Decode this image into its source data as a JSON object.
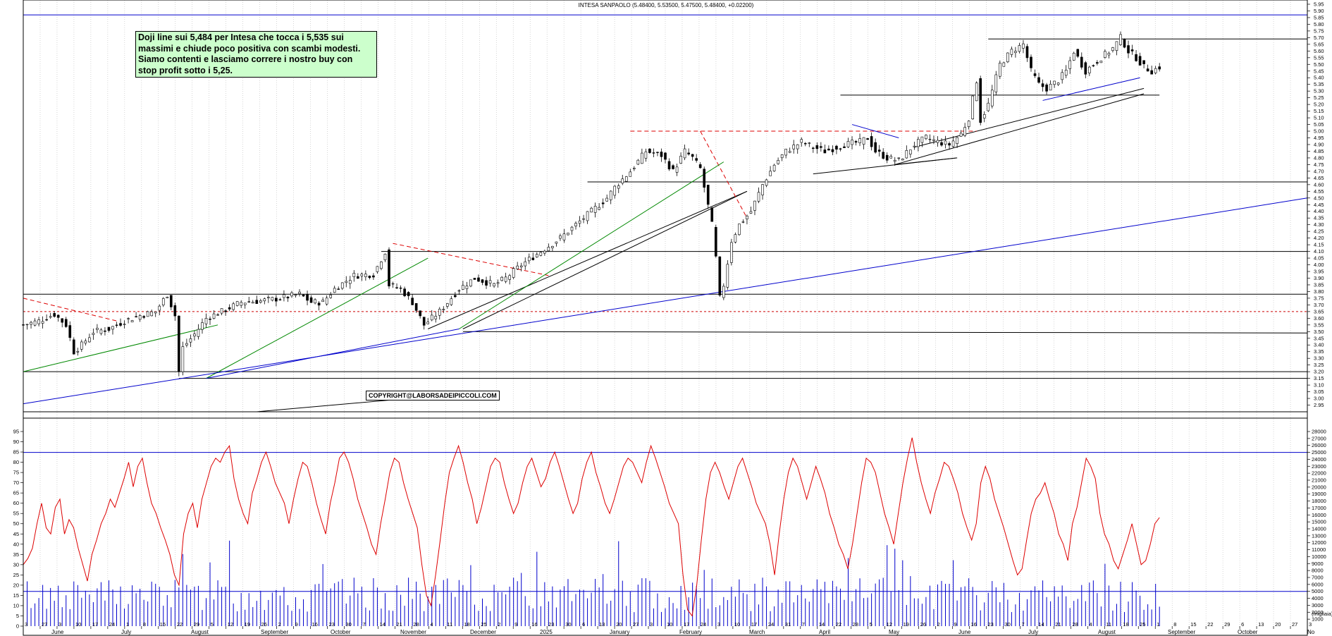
{
  "chart_data": [
    {
      "type": "candlestick",
      "title": "INTESA SANPAOLO (5.48400, 5.53500, 5.47500, 5.48400, +0.02200)",
      "ylim": [
        2.9,
        5.95
      ],
      "y_ticks": [
        "5.95",
        "5.90",
        "5.85",
        "5.80",
        "5.75",
        "5.70",
        "5.65",
        "5.60",
        "5.55",
        "5.50",
        "5.45",
        "5.40",
        "5.35",
        "5.30",
        "5.25",
        "5.20",
        "5.15",
        "5.10",
        "5.05",
        "5.00",
        "4.95",
        "4.90",
        "4.85",
        "4.80",
        "4.75",
        "4.70",
        "4.65",
        "4.60",
        "4.55",
        "4.50",
        "4.45",
        "4.40",
        "4.35",
        "4.30",
        "4.25",
        "4.20",
        "4.15",
        "4.10",
        "4.05",
        "4.00",
        "3.95",
        "3.90",
        "3.85",
        "3.80",
        "3.75",
        "3.70",
        "3.65",
        "3.60",
        "3.55",
        "3.50",
        "3.45",
        "3.40",
        "3.35",
        "3.30",
        "3.25",
        "3.20",
        "3.15",
        "3.10",
        "3.05",
        "3.00",
        "2.95"
      ],
      "close_path": [
        [
          0,
          3.55
        ],
        [
          4,
          3.58
        ],
        [
          8,
          3.63
        ],
        [
          11,
          3.55
        ],
        [
          13,
          3.35
        ],
        [
          15,
          3.4
        ],
        [
          18,
          3.5
        ],
        [
          22,
          3.52
        ],
        [
          26,
          3.58
        ],
        [
          30,
          3.62
        ],
        [
          34,
          3.65
        ],
        [
          37,
          3.78
        ],
        [
          39,
          3.62
        ],
        [
          40,
          3.2
        ],
        [
          41,
          3.38
        ],
        [
          44,
          3.48
        ],
        [
          47,
          3.6
        ],
        [
          51,
          3.65
        ],
        [
          56,
          3.72
        ],
        [
          61,
          3.73
        ],
        [
          66,
          3.75
        ],
        [
          71,
          3.78
        ],
        [
          74,
          3.72
        ],
        [
          77,
          3.72
        ],
        [
          80,
          3.82
        ],
        [
          85,
          3.92
        ],
        [
          90,
          3.93
        ],
        [
          93,
          4.1
        ],
        [
          94,
          3.85
        ],
        [
          97,
          3.82
        ],
        [
          100,
          3.72
        ],
        [
          103,
          3.55
        ],
        [
          107,
          3.65
        ],
        [
          112,
          3.82
        ],
        [
          116,
          3.9
        ],
        [
          121,
          3.85
        ],
        [
          124,
          3.9
        ],
        [
          128,
          4.0
        ],
        [
          133,
          4.1
        ],
        [
          138,
          4.2
        ],
        [
          142,
          4.3
        ],
        [
          146,
          4.4
        ],
        [
          150,
          4.5
        ],
        [
          152,
          4.58
        ],
        [
          156,
          4.7
        ],
        [
          160,
          4.85
        ],
        [
          164,
          4.82
        ],
        [
          167,
          4.7
        ],
        [
          170,
          4.85
        ],
        [
          172,
          4.8
        ],
        [
          174,
          4.72
        ],
        [
          177,
          4.3
        ],
        [
          178,
          4.05
        ],
        [
          179,
          3.75
        ],
        [
          180,
          3.85
        ],
        [
          182,
          4.18
        ],
        [
          184,
          4.3
        ],
        [
          187,
          4.4
        ],
        [
          190,
          4.6
        ],
        [
          193,
          4.75
        ],
        [
          196,
          4.85
        ],
        [
          200,
          4.92
        ],
        [
          203,
          4.88
        ],
        [
          206,
          4.85
        ],
        [
          211,
          4.9
        ],
        [
          215,
          4.92
        ],
        [
          217,
          4.95
        ],
        [
          219,
          4.85
        ],
        [
          222,
          4.8
        ],
        [
          225,
          4.78
        ],
        [
          229,
          4.9
        ],
        [
          232,
          4.95
        ],
        [
          235,
          4.92
        ],
        [
          238,
          4.9
        ],
        [
          241,
          4.98
        ],
        [
          243,
          5.1
        ],
        [
          245,
          5.38
        ],
        [
          246,
          5.08
        ],
        [
          248,
          5.2
        ],
        [
          251,
          5.5
        ],
        [
          254,
          5.6
        ],
        [
          257,
          5.65
        ],
        [
          259,
          5.45
        ],
        [
          261,
          5.35
        ],
        [
          263,
          5.32
        ],
        [
          266,
          5.38
        ],
        [
          268,
          5.45
        ],
        [
          270,
          5.6
        ],
        [
          273,
          5.45
        ],
        [
          277,
          5.55
        ],
        [
          280,
          5.62
        ],
        [
          282,
          5.7
        ],
        [
          284,
          5.6
        ],
        [
          286,
          5.55
        ],
        [
          288,
          5.48
        ],
        [
          290,
          5.45
        ],
        [
          292,
          5.48
        ]
      ],
      "levels": [
        {
          "y": 5.87,
          "color": "#0000cc"
        },
        {
          "y": 3.65,
          "color": "#cc0000",
          "style": "dashed"
        }
      ],
      "segments_black": [
        [
          [
            145,
            4.62
          ],
          [
            330,
            4.62
          ]
        ],
        [
          [
            203,
            4.68
          ],
          [
            240,
            4.8
          ]
        ],
        [
          [
            113,
            3.5
          ],
          [
            330,
            3.49
          ]
        ],
        [
          [
            0,
            3.2
          ],
          [
            330,
            3.2
          ]
        ],
        [
          [
            0,
            3.78
          ],
          [
            330,
            3.78
          ]
        ],
        [
          [
            92,
            4.1
          ],
          [
            330,
            4.1
          ]
        ],
        [
          [
            210,
            5.27
          ],
          [
            292,
            5.27
          ]
        ],
        [
          [
            248,
            5.69
          ],
          [
            330,
            5.69
          ]
        ],
        [
          [
            224,
            4.75
          ],
          [
            240,
            4.8
          ]
        ],
        [
          [
            40,
            3.15
          ],
          [
            330,
            3.15
          ]
        ],
        [
          [
            0,
            2.9
          ],
          [
            330,
            2.9
          ]
        ],
        [
          [
            104,
            3.52
          ],
          [
            186,
            4.55
          ]
        ],
        [
          [
            229,
            4.88
          ],
          [
            288,
            5.32
          ]
        ],
        [
          [
            113,
            3.52
          ],
          [
            186,
            4.55
          ]
        ],
        [
          [
            224,
            4.75
          ],
          [
            288,
            5.28
          ]
        ],
        [
          [
            60,
            2.9
          ],
          [
            95,
            2.99
          ]
        ]
      ],
      "segments_red": [
        [
          [
            156,
            5.0
          ],
          [
            245,
            5.0
          ]
        ],
        [
          [
            0,
            3.75
          ],
          [
            24,
            3.58
          ]
        ],
        [
          [
            95,
            4.16
          ],
          [
            135,
            3.92
          ]
        ],
        [
          [
            174,
            5.0
          ],
          [
            186,
            4.35
          ]
        ]
      ],
      "segments_green": [
        [
          [
            0,
            3.2
          ],
          [
            50,
            3.55
          ]
        ],
        [
          [
            47,
            3.15
          ],
          [
            104,
            4.05
          ]
        ],
        [
          [
            112,
            3.52
          ],
          [
            180,
            4.77
          ]
        ]
      ],
      "segments_blue": [
        [
          [
            0,
            2.96
          ],
          [
            330,
            4.5
          ]
        ],
        [
          [
            47,
            3.15
          ],
          [
            112,
            3.52
          ]
        ],
        [
          [
            262,
            5.23
          ],
          [
            287,
            5.4
          ]
        ],
        [
          [
            213,
            5.05
          ],
          [
            225,
            4.95
          ]
        ]
      ],
      "x_ticks": [
        "3",
        "27",
        "3",
        "10",
        "17",
        "24",
        "1",
        "8",
        "15",
        "22",
        "29",
        "5",
        "12",
        "19",
        "26",
        "2",
        "9",
        "16",
        "23",
        "30",
        "7",
        "14",
        "21",
        "28",
        "4",
        "11",
        "18",
        "25",
        "2",
        "9",
        "16",
        "23",
        "30",
        "6",
        "13",
        "20",
        "27",
        "3",
        "10",
        "17",
        "24",
        "3",
        "10",
        "17",
        "24",
        "31",
        "7",
        "14",
        "22",
        "28",
        "5",
        "12",
        "19",
        "26",
        "2",
        "9",
        "16",
        "23",
        "30",
        "7",
        "14",
        "21",
        "28",
        "4",
        "11",
        "18",
        "25",
        "1",
        "8",
        "15",
        "22",
        "29",
        "6",
        "13",
        "20",
        "27",
        "3"
      ],
      "x_months": [
        "June",
        "July",
        "August",
        "September",
        "October",
        "November",
        "December",
        "2025",
        "January",
        "February",
        "March",
        "April",
        "May",
        "June",
        "July",
        "August",
        "September",
        "October",
        "No"
      ]
    },
    {
      "type": "line",
      "name": "oscillator",
      "ylim": [
        0,
        95
      ],
      "y_ticks": [
        "95",
        "90",
        "85",
        "80",
        "75",
        "70",
        "65",
        "60",
        "55",
        "50",
        "45",
        "40",
        "35",
        "30",
        "25",
        "20",
        "15",
        "10",
        "5",
        "0"
      ],
      "levels": [
        90,
        15
      ],
      "values": [
        30,
        33,
        38,
        50,
        60,
        48,
        45,
        58,
        62,
        45,
        52,
        48,
        38,
        30,
        22,
        35,
        42,
        50,
        55,
        62,
        58,
        65,
        72,
        80,
        68,
        78,
        82,
        70,
        60,
        55,
        48,
        42,
        35,
        25,
        20,
        45,
        55,
        60,
        48,
        62,
        70,
        78,
        82,
        80,
        85,
        88,
        72,
        62,
        55,
        50,
        65,
        72,
        80,
        85,
        78,
        70,
        65,
        60,
        50,
        62,
        72,
        80,
        78,
        70,
        60,
        52,
        45,
        60,
        70,
        82,
        85,
        80,
        72,
        62,
        55,
        48,
        40,
        35,
        50,
        62,
        75,
        82,
        80,
        70,
        62,
        55,
        48,
        30,
        15,
        10,
        25,
        42,
        60,
        75,
        82,
        88,
        80,
        70,
        62,
        50,
        58,
        68,
        78,
        82,
        80,
        70,
        62,
        55,
        60,
        70,
        78,
        82,
        75,
        68,
        72,
        80,
        85,
        78,
        70,
        62,
        55,
        60,
        72,
        80,
        85,
        75,
        68,
        60,
        55,
        62,
        70,
        78,
        82,
        80,
        75,
        70,
        80,
        88,
        82,
        75,
        68,
        60,
        55,
        50,
        25,
        8,
        5,
        20,
        42,
        62,
        75,
        80,
        75,
        68,
        62,
        70,
        78,
        82,
        75,
        68,
        60,
        55,
        50,
        40,
        25,
        45,
        62,
        75,
        82,
        78,
        70,
        62,
        70,
        78,
        72,
        65,
        55,
        48,
        40,
        35,
        28,
        40,
        55,
        70,
        82,
        80,
        75,
        65,
        55,
        48,
        40,
        55,
        70,
        82,
        92,
        80,
        70,
        62,
        55,
        65,
        72,
        80,
        78,
        72,
        65,
        55,
        48,
        42,
        50,
        70,
        78,
        72,
        62,
        55,
        48,
        40,
        32,
        25,
        28,
        42,
        55,
        62,
        65,
        70,
        62,
        55,
        45,
        40,
        32,
        50,
        58,
        70,
        82,
        78,
        72,
        55,
        45,
        40,
        32,
        28,
        35,
        42,
        50,
        40,
        30,
        32,
        40,
        50,
        53
      ]
    },
    {
      "type": "bar",
      "name": "volume",
      "ylim": [
        0,
        28000
      ],
      "y_ticks": [
        "28000",
        "27000",
        "26000",
        "25000",
        "24000",
        "23000",
        "22000",
        "21000",
        "20000",
        "19000",
        "18000",
        "17000",
        "16000",
        "15000",
        "14000",
        "13000",
        "12000",
        "11000",
        "10000",
        "9000",
        "8000",
        "7000",
        "6000",
        "5000",
        "4000",
        "3000",
        "2000",
        "1000"
      ],
      "y_axis_label": "(migliaia)",
      "levels": [
        25000,
        5000
      ]
    }
  ],
  "annotation": {
    "lines": [
      "Doji line sui 5,484 per Intesa che tocca i 5,535 sui",
      "massimi e chiude poco positiva con scambi modesti.",
      "Siamo contenti e lasciamo correre i nostro buy con",
      "stop profit sotto i 5,25."
    ]
  },
  "copyright": "COPYRIGHT@LABORSADEIPICCOLI.COM"
}
